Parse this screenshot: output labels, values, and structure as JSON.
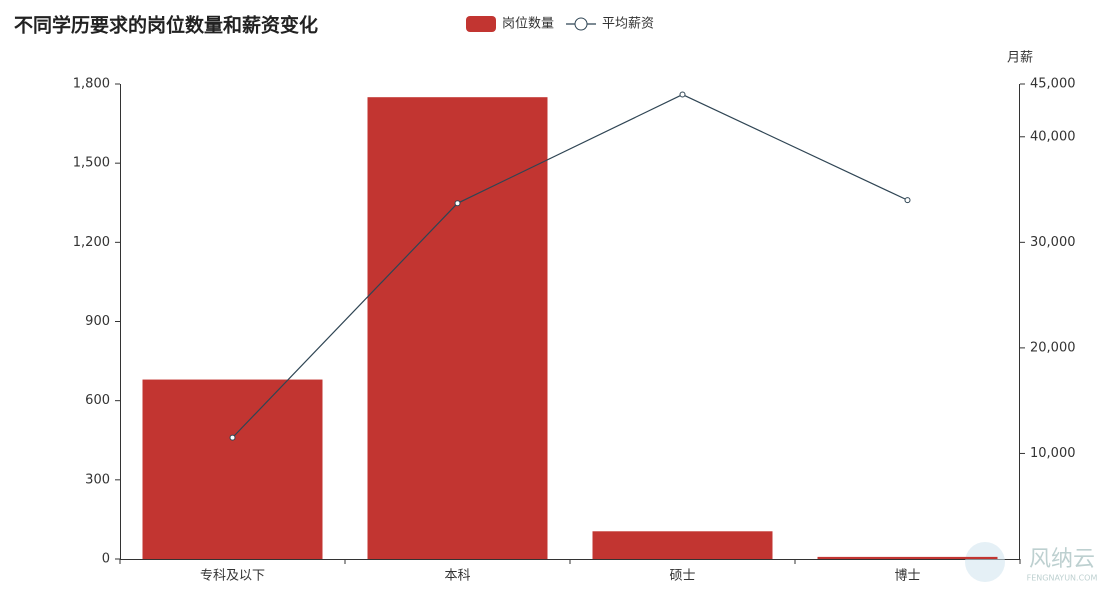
{
  "chart_data": {
    "type": "bar-line",
    "title": "不同学历要求的岗位数量和薪资变化",
    "categories": [
      "专科及以下",
      "本科",
      "硕士",
      "博士"
    ],
    "series": [
      {
        "name": "岗位数量",
        "type": "bar",
        "color": "#c23531",
        "values": [
          680,
          1750,
          105,
          8
        ]
      },
      {
        "name": "平均薪资",
        "type": "line",
        "axis": "y2",
        "color": "#2f4554",
        "values": [
          11500,
          33700,
          44000,
          34000
        ]
      }
    ],
    "ylim": [
      0,
      1800
    ],
    "yticks": [
      0,
      300,
      600,
      900,
      {
        "value": 1200,
        "label": "1,200"
      },
      {
        "value": 1500,
        "label": "1,500"
      },
      {
        "value": 1800,
        "label": "1,800"
      }
    ],
    "y2label": "月薪",
    "y2lim": [
      0,
      45000
    ],
    "y2ticks": [
      {
        "value": 10000,
        "label": "10,000"
      },
      {
        "value": 20000,
        "label": "20,000"
      },
      {
        "value": 30000,
        "label": "30,000"
      },
      {
        "value": 40000,
        "label": "40,000"
      },
      {
        "value": 45000,
        "label": "45,000"
      }
    ],
    "legend": "top",
    "watermark": "风纳云",
    "watermark_sub": "FENGNAYUN.COM"
  }
}
